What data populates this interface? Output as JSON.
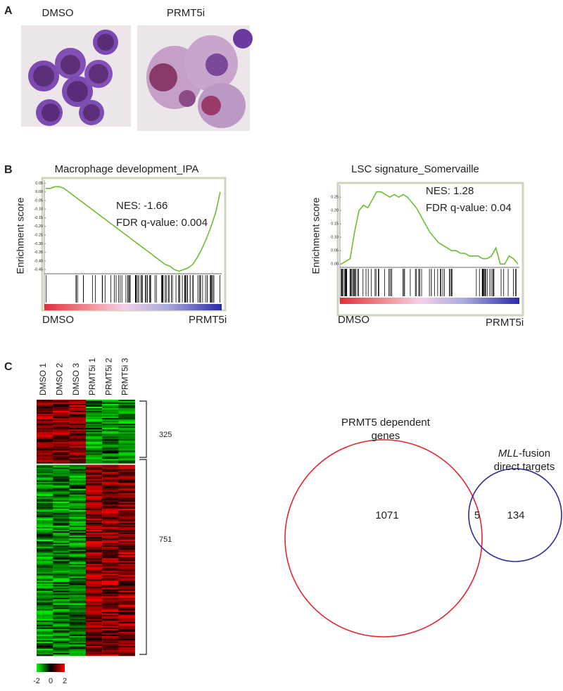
{
  "chart_data": [
    {
      "type": "line",
      "title": "Macrophage development_IPA",
      "y_label": "Enrichment score",
      "color": "#6abf2e",
      "values": [
        0.02,
        0.02,
        0.03,
        0.03,
        0.02,
        0.0,
        -0.02,
        -0.04,
        -0.06,
        -0.08,
        -0.1,
        -0.12,
        -0.14,
        -0.16,
        -0.18,
        -0.2,
        -0.22,
        -0.24,
        -0.26,
        -0.28,
        -0.3,
        -0.32,
        -0.34,
        -0.36,
        -0.38,
        -0.4,
        -0.42,
        -0.43,
        -0.45,
        -0.46,
        -0.45,
        -0.44,
        -0.42,
        -0.38,
        -0.33,
        -0.27,
        -0.2,
        -0.12,
        0.0
      ],
      "ylim": [
        -0.47,
        0.06
      ],
      "yticks": [
        0.05,
        {
          "value": 0,
          "label": "0.00"
        },
        -0.05,
        {
          "value": -0.1,
          "label": "-0.10"
        },
        -0.15,
        {
          "value": -0.2,
          "label": "-0.20"
        },
        -0.25,
        {
          "value": -0.3,
          "label": "-0.30"
        },
        -0.35,
        {
          "value": -0.4,
          "label": "-0.40"
        },
        -0.45
      ],
      "annotations": [
        "NES: -1.66",
        "FDR q-value: 0.004"
      ],
      "left_label": "DMSO",
      "right_label": "PRMT5i"
    },
    {
      "type": "line",
      "title": "LSC signature_Somervaille",
      "y_label": "Enrichment score",
      "color": "#6abf2e",
      "values": [
        0.0,
        0.01,
        0.02,
        0.12,
        0.2,
        0.22,
        0.21,
        0.24,
        0.27,
        0.27,
        0.26,
        0.25,
        0.26,
        0.25,
        0.26,
        0.25,
        0.23,
        0.21,
        0.18,
        0.15,
        0.12,
        0.1,
        0.08,
        0.07,
        0.06,
        0.05,
        0.05,
        0.04,
        0.04,
        0.03,
        0.03,
        0.03,
        0.02,
        0.02,
        0.03,
        0.06,
        0.0,
        0.0,
        0.03,
        0.02,
        0.0
      ],
      "ylim": [
        -0.01,
        0.29
      ],
      "yticks": [
        0.25,
        {
          "value": 0.2,
          "label": "0.20"
        },
        0.15,
        {
          "value": 0.1,
          "label": "0.10"
        },
        0.05,
        {
          "value": 0,
          "label": "0.00"
        }
      ],
      "annotations": [
        "NES: 1.28",
        "FDR q-value: 0.04"
      ],
      "left_label": "DMSO",
      "right_label": "PRMT5i"
    }
  ],
  "figure": {
    "panel_a": {
      "label": "A",
      "captions": [
        "DMSO",
        "PRMT5i"
      ]
    },
    "panel_b": {
      "label": "B"
    },
    "panel_c": {
      "label": "C",
      "heatmap": {
        "columns": [
          "DMSO 1",
          "DMSO 2",
          "DMSO 3",
          "PRMT5i 1",
          "PRMT5i 2",
          "PRMT5i 3"
        ],
        "clusters": [
          325,
          751
        ],
        "colorbar_ticks": [
          -2,
          0,
          2
        ]
      },
      "venn": {
        "left_lines": [
          "PRMT5 dependent",
          "genes"
        ],
        "right_parts": [
          "MLL",
          "-fusion"
        ],
        "right_line2": "direct targets",
        "left_only": 1071,
        "overlap": 5,
        "right_only": 134
      }
    }
  }
}
